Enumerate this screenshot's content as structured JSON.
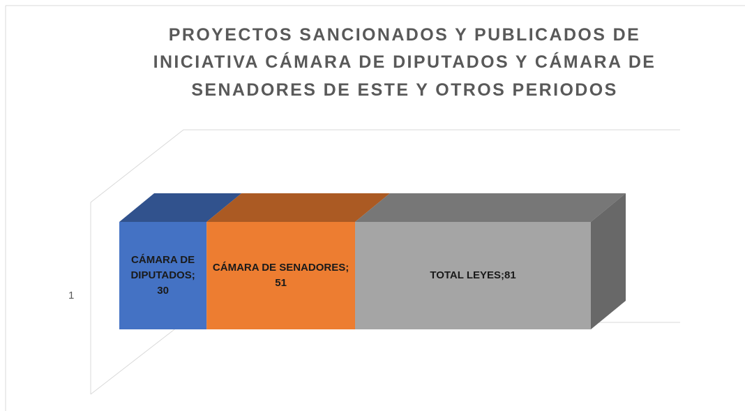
{
  "chart_data": {
    "type": "bar",
    "orientation": "horizontal",
    "stacked": true,
    "three_d": true,
    "title": [
      "PROYECTOS SANCIONADOS Y PUBLICADOS DE",
      "INICIATIVA CÁMARA DE DIPUTADOS Y CÁMARA DE",
      "SENADORES DE ESTE Y OTROS PERIODOS"
    ],
    "categories": [
      "1"
    ],
    "series": [
      {
        "color": "#4472c4",
        "values": [
          30
        ],
        "value_labels": [
          "CÁMARA DE DIPUTADOS; 30"
        ]
      },
      {
        "color": "#ed7d31",
        "values": [
          51
        ],
        "value_labels": [
          "CÁMARA DE SENADORES; 51"
        ]
      },
      {
        "color": "#a5a5a5",
        "values": [
          81
        ],
        "value_labels": [
          "TOTAL LEYES;81"
        ]
      }
    ]
  }
}
